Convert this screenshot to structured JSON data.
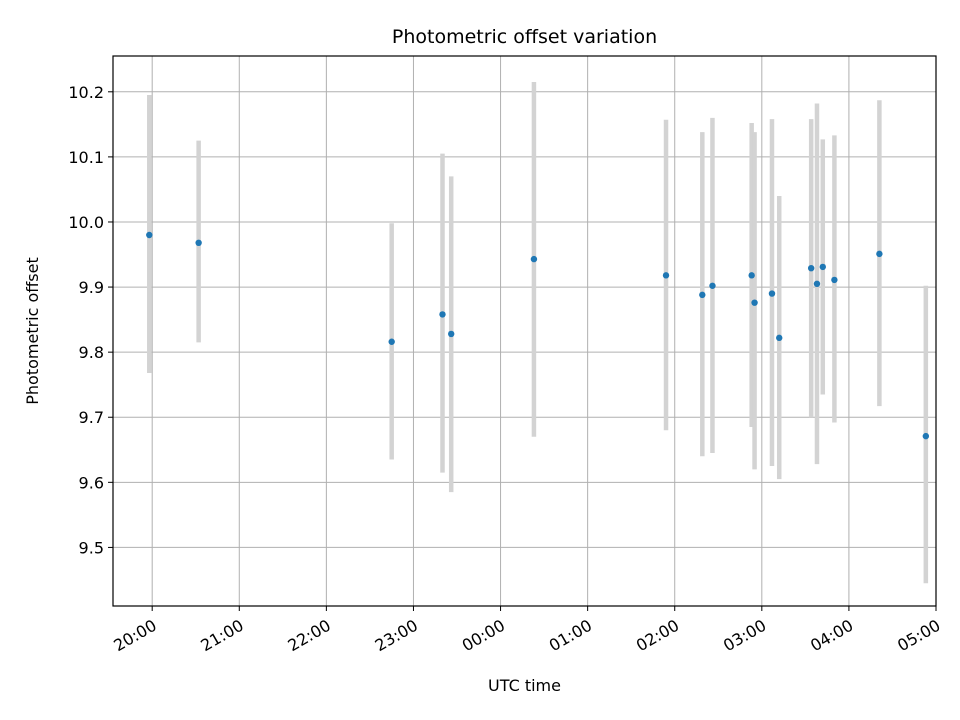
{
  "chart_data": {
    "type": "scatter",
    "title": "Photometric offset variation",
    "xlabel": "UTC time",
    "ylabel": "Photometric offset",
    "x_ticks": [
      "20:00",
      "21:00",
      "22:00",
      "23:00",
      "00:00",
      "01:00",
      "02:00",
      "03:00",
      "04:00",
      "05:00"
    ],
    "y_ticks": [
      9.5,
      9.6,
      9.7,
      9.8,
      9.9,
      10.0,
      10.1,
      10.2
    ],
    "xlim": [
      "19:33",
      "05:00"
    ],
    "ylim": [
      9.41,
      10.255
    ],
    "grid": true,
    "colors": {
      "points": "#1f77b4",
      "errorbars": "#d3d3d3",
      "grid": "#b0b0b0"
    },
    "series": [
      {
        "x": [
          "19:58",
          "20:32",
          "22:45",
          "23:20",
          "23:26",
          "00:23",
          "01:54",
          "02:19",
          "02:26",
          "02:53",
          "02:55",
          "03:07",
          "03:12",
          "03:34",
          "03:38",
          "03:42",
          "03:50",
          "04:21",
          "04:53"
        ],
        "y": [
          9.98,
          9.968,
          9.816,
          9.858,
          9.828,
          9.943,
          9.918,
          9.888,
          9.902,
          9.918,
          9.876,
          9.89,
          9.822,
          9.929,
          9.905,
          9.931,
          9.911,
          9.951,
          9.671
        ],
        "yerr_low": [
          9.768,
          9.815,
          9.635,
          9.615,
          9.585,
          9.67,
          9.68,
          9.64,
          9.645,
          9.685,
          9.62,
          9.625,
          9.605,
          9.7,
          9.628,
          9.735,
          9.692,
          9.717,
          9.445
        ],
        "yerr_high": [
          10.195,
          10.125,
          9.998,
          10.105,
          10.07,
          10.215,
          10.157,
          10.138,
          10.16,
          10.152,
          10.138,
          10.158,
          10.04,
          10.158,
          10.182,
          10.127,
          10.133,
          10.187,
          9.902
        ]
      }
    ]
  }
}
